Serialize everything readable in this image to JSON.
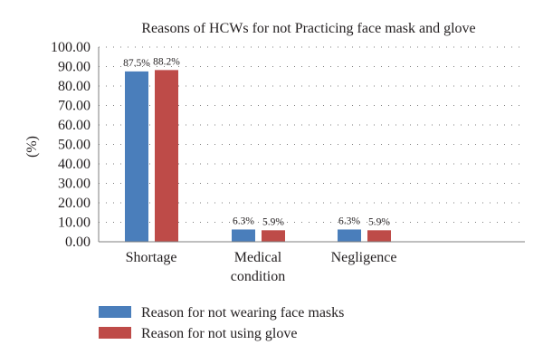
{
  "chart_data": {
    "type": "bar",
    "title": "Reasons of HCWs for not Practicing face mask and glove",
    "xlabel": "",
    "ylabel": "(%)",
    "ylim": [
      0,
      100
    ],
    "yticks": [
      "0.00",
      "10.00",
      "20.00",
      "30.00",
      "40.00",
      "50.00",
      "60.00",
      "70.00",
      "80.00",
      "90.00",
      "100.00"
    ],
    "categories": [
      [
        "Shortage"
      ],
      [
        "Medical",
        "condition"
      ],
      [
        "Negligence"
      ]
    ],
    "series": [
      {
        "name": "Reason for not wearing face masks",
        "color": "#4a7ebb",
        "values": [
          87.5,
          6.3,
          6.3
        ],
        "labels": [
          "87.5%",
          "6.3%",
          "6.3%"
        ]
      },
      {
        "name": "Reason for not using glove",
        "color": "#be4b48",
        "values": [
          88.2,
          5.9,
          5.9
        ],
        "labels": [
          "88.2%",
          "5.9%",
          "5.9%"
        ]
      }
    ],
    "grid": true,
    "grid_style": "dotted",
    "legend_position": "bottom-left"
  }
}
